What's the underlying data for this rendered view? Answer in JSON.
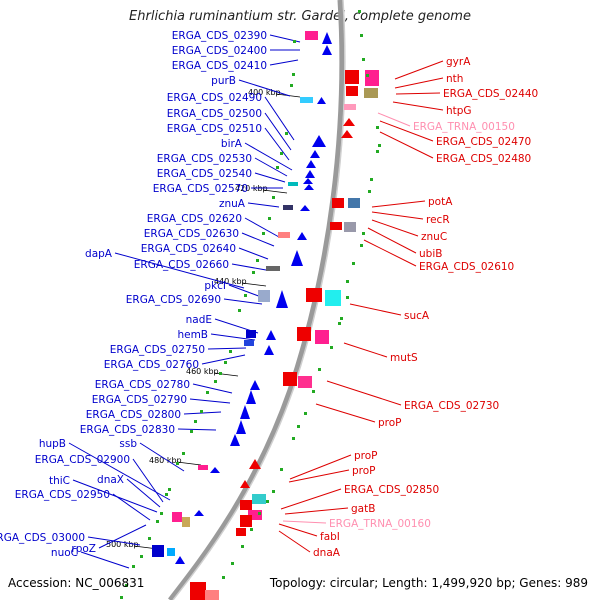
{
  "title": "Ehrlichia ruminantium str. Gardel, complete genome",
  "footer": {
    "accession": "Accession: NC_006831",
    "summary": "Topology: circular; Length: 1,499,920 bp; Genes: 989"
  },
  "colors": {
    "minus_label": "#0000cc",
    "plus_label": "#dd0000",
    "rna_label": "#ff8fb0",
    "backbone": "#999999"
  },
  "kbp_ticks": [
    {
      "text": "400 kbp"
    },
    {
      "text": "420 kbp"
    },
    {
      "text": "440 kbp"
    },
    {
      "text": "460 kbp"
    },
    {
      "text": "480 kbp"
    },
    {
      "text": "500 kbp"
    }
  ],
  "minus_strand_labels": [
    "ERGA_CDS_02390",
    "ERGA_CDS_02400",
    "ERGA_CDS_02410",
    "purB",
    "ERGA_CDS_02490",
    "ERGA_CDS_02500",
    "ERGA_CDS_02510",
    "birA",
    "ERGA_CDS_02530",
    "ERGA_CDS_02540",
    "ERGA_CDS_02570",
    "znuA",
    "ERGA_CDS_02620",
    "ERGA_CDS_02630",
    "ERGA_CDS_02640",
    "dapA",
    "ERGA_CDS_02660",
    "pkcI",
    "ERGA_CDS_02690",
    "nadE",
    "hemB",
    "ERGA_CDS_02750",
    "ERGA_CDS_02760",
    "ERGA_CDS_02780",
    "ERGA_CDS_02790",
    "ERGA_CDS_02800",
    "ERGA_CDS_02830",
    "ssb",
    "hupB",
    "ERGA_CDS_02900",
    "dnaX",
    "thiC",
    "ERGA_CDS_02950",
    "rpoZ",
    "ERGA_CDS_03000",
    "nuoC"
  ],
  "plus_strand_labels": [
    "gyrA",
    "nth",
    "ERGA_CDS_02440",
    "htpG",
    "ERGA_TRNA_00150",
    "ERGA_CDS_02470",
    "ERGA_CDS_02480",
    "potA",
    "recR",
    "znuC",
    "ubiB",
    "ERGA_CDS_02610",
    "sucA",
    "mutS",
    "ERGA_CDS_02730",
    "proP",
    "proP",
    "proP",
    "ERGA_CDS_02850",
    "gatB",
    "ERGA_TRNA_00160",
    "fabI",
    "dnaA"
  ],
  "rna_labels": [
    "ERGA_TRNA_00150",
    "ERGA_TRNA_00160"
  ]
}
